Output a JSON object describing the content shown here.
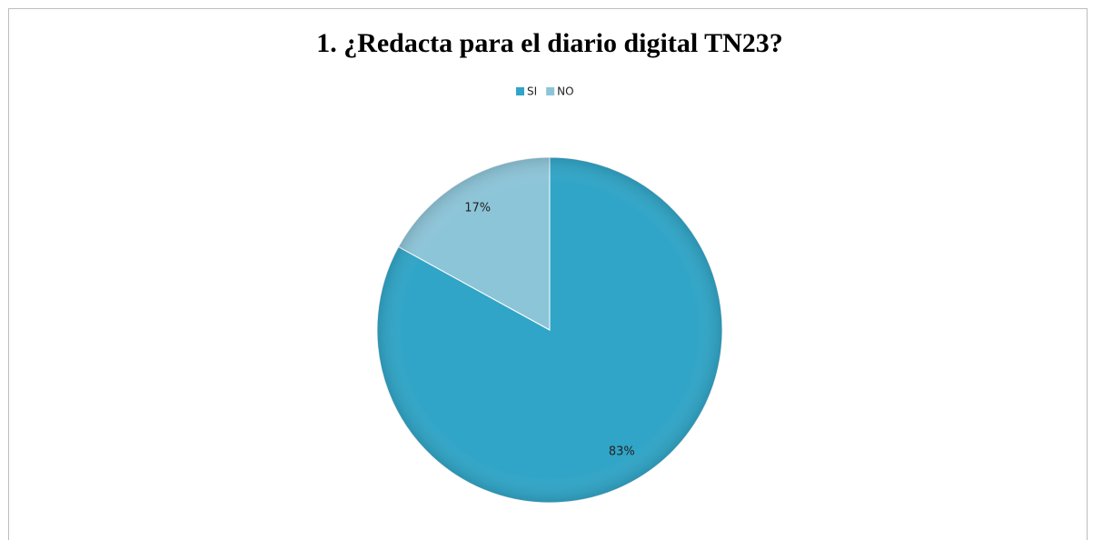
{
  "chart_data": {
    "type": "pie",
    "title": "1. ¿Redacta para el diario digital TN23?",
    "categories": [
      "SI",
      "NO"
    ],
    "values": [
      83,
      17
    ],
    "value_labels": [
      "83%",
      "17%"
    ],
    "colors": [
      "#31a5c7",
      "#8dc5d8"
    ],
    "legend": "top"
  }
}
